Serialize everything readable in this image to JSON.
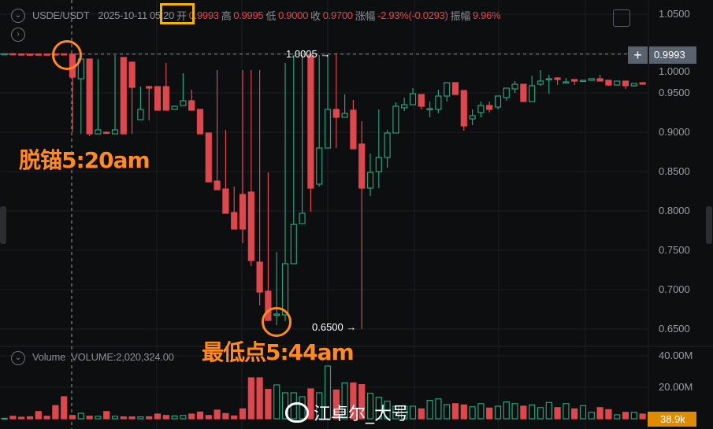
{
  "header": {
    "symbol": "USDE/USDT",
    "date": "2025-10-11",
    "time": "05:20",
    "open_label": "开",
    "open": "0.9993",
    "high_label": "高",
    "high": "0.9995",
    "low_label": "低",
    "low": "0.9000",
    "close_label": "收",
    "close": "0.9700",
    "change_label": "涨幅",
    "change": "-2.93%(-0.0293)",
    "amplitude_label": "振幅",
    "amplitude": "9.96%"
  },
  "price_axis": [
    "1.0500",
    "1.0000",
    "0.9500",
    "0.9000",
    "0.8500",
    "0.8000",
    "0.7500",
    "0.7000",
    "0.6500"
  ],
  "volume_axis": [
    "40.00M",
    "20.00M"
  ],
  "current_price": "0.9993",
  "high_marker": "1.0005 →",
  "low_marker": "0.6500 →",
  "volume_header": {
    "label": "Volume",
    "value": "VOLUME:2,020,324.00"
  },
  "current_volume": "38.9k",
  "annotations": {
    "depeg": "脱锚5:20am",
    "lowest": "最低点5:44am"
  },
  "watermark": "江卓尔_大号",
  "colors": {
    "up": "#26a17b",
    "down": "#e0474c",
    "highlight": "#f5b400",
    "annotation": "#ff8a1f",
    "background": "#0d0e10"
  },
  "chart_data": {
    "type": "candlestick",
    "ylim": [
      0.65,
      1.05
    ],
    "volume_ylim": [
      0,
      40
    ],
    "volume_unit": "M",
    "grid": true,
    "candles": [
      [
        0.9993,
        1.0,
        0.999,
        0.9998
      ],
      [
        0.9998,
        1.0,
        0.999,
        0.9995
      ],
      [
        0.9995,
        0.9998,
        0.999,
        0.9993
      ],
      [
        0.9993,
        0.9998,
        0.999,
        0.9992
      ],
      [
        0.9994,
        0.9998,
        0.999,
        0.9992
      ],
      [
        0.9994,
        0.9998,
        0.999,
        0.9992
      ],
      [
        0.9995,
        0.9998,
        0.999,
        0.9993
      ],
      [
        0.9996,
        0.9998,
        0.999,
        0.9993
      ],
      [
        0.9993,
        0.9995,
        0.9,
        0.97
      ],
      [
        0.968,
        0.998,
        0.898,
        0.993
      ],
      [
        0.993,
        0.993,
        0.895,
        0.898
      ],
      [
        0.898,
        0.993,
        0.898,
        0.903
      ],
      [
        0.9,
        0.901,
        0.898,
        0.899
      ],
      [
        0.898,
        0.998,
        0.898,
        0.903
      ],
      [
        0.995,
        0.995,
        0.898,
        0.898
      ],
      [
        0.989,
        0.99,
        0.898,
        0.957
      ],
      [
        0.916,
        0.958,
        0.916,
        0.929
      ],
      [
        0.958,
        0.959,
        0.915,
        0.956
      ],
      [
        0.958,
        0.958,
        0.928,
        0.928
      ],
      [
        0.958,
        0.988,
        0.928,
        0.928
      ],
      [
        0.929,
        0.934,
        0.929,
        0.933
      ],
      [
        0.934,
        0.975,
        0.934,
        0.94
      ],
      [
        0.94,
        0.954,
        0.928,
        0.928
      ],
      [
        0.929,
        0.929,
        0.898,
        0.898
      ],
      [
        0.899,
        0.899,
        0.837,
        0.837
      ],
      [
        0.838,
        0.979,
        0.827,
        0.827
      ],
      [
        0.828,
        0.903,
        0.797,
        0.797
      ],
      [
        0.798,
        0.831,
        0.777,
        0.777
      ],
      [
        0.821,
        0.979,
        0.759,
        0.777
      ],
      [
        0.824,
        0.979,
        0.73,
        0.737
      ],
      [
        0.735,
        0.979,
        0.68,
        0.697
      ],
      [
        0.698,
        0.849,
        0.66,
        0.661
      ],
      [
        0.668,
        0.748,
        0.655,
        0.669
      ],
      [
        0.668,
        0.988,
        0.66,
        0.733
      ],
      [
        0.733,
        0.998,
        0.733,
        0.783
      ],
      [
        0.784,
        0.998,
        0.784,
        0.797
      ],
      [
        0.998,
        0.998,
        0.799,
        0.829
      ],
      [
        0.834,
        0.998,
        0.831,
        0.88
      ],
      [
        0.88,
        0.998,
        0.88,
        0.929
      ],
      [
        0.929,
        1.0005,
        0.88,
        0.919
      ],
      [
        0.919,
        0.948,
        0.919,
        0.924
      ],
      [
        0.928,
        0.941,
        0.879,
        0.879
      ],
      [
        0.885,
        0.914,
        0.65,
        0.829
      ],
      [
        0.829,
        0.873,
        0.819,
        0.849
      ],
      [
        0.85,
        0.929,
        0.829,
        0.868
      ],
      [
        0.868,
        0.903,
        0.855,
        0.899
      ],
      [
        0.899,
        0.938,
        0.899,
        0.933
      ],
      [
        0.931,
        0.944,
        0.927,
        0.935
      ],
      [
        0.935,
        0.956,
        0.935,
        0.949
      ],
      [
        0.948,
        0.948,
        0.929,
        0.933
      ],
      [
        0.929,
        0.939,
        0.919,
        0.93
      ],
      [
        0.929,
        0.954,
        0.924,
        0.946
      ],
      [
        0.946,
        0.963,
        0.939,
        0.963
      ],
      [
        0.963,
        0.963,
        0.948,
        0.948
      ],
      [
        0.953,
        0.953,
        0.902,
        0.908
      ],
      [
        0.917,
        0.929,
        0.909,
        0.921
      ],
      [
        0.925,
        0.939,
        0.919,
        0.934
      ],
      [
        0.934,
        0.939,
        0.925,
        0.929
      ],
      [
        0.932,
        0.946,
        0.929,
        0.946
      ],
      [
        0.944,
        0.956,
        0.94,
        0.956
      ],
      [
        0.955,
        0.965,
        0.95,
        0.961
      ],
      [
        0.961,
        0.961,
        0.939,
        0.939
      ],
      [
        0.939,
        0.972,
        0.939,
        0.959
      ],
      [
        0.961,
        0.979,
        0.959,
        0.965
      ],
      [
        0.967,
        0.973,
        0.949,
        0.968
      ],
      [
        0.969,
        0.97,
        0.96,
        0.967
      ],
      [
        0.963,
        0.969,
        0.963,
        0.964
      ],
      [
        0.967,
        0.967,
        0.96,
        0.965
      ],
      [
        0.965,
        0.966,
        0.965,
        0.966
      ],
      [
        0.966,
        0.968,
        0.966,
        0.968
      ],
      [
        0.968,
        0.973,
        0.965,
        0.965
      ],
      [
        0.966,
        0.966,
        0.959,
        0.96
      ],
      [
        0.96,
        0.965,
        0.96,
        0.965
      ],
      [
        0.965,
        0.965,
        0.955,
        0.959
      ],
      [
        0.959,
        0.962,
        0.958,
        0.962
      ],
      [
        0.963,
        0.963,
        0.961,
        0.961
      ]
    ],
    "volumes": [
      0.3,
      1.6,
      1.0,
      1.3,
      4.6,
      1.6,
      8.4,
      14,
      2.1,
      3.5,
      1.6,
      1.6,
      4.6,
      1.6,
      1.2,
      1.2,
      1.2,
      1.3,
      3,
      2.1,
      1.8,
      2.1,
      3,
      4.3,
      2.1,
      5.5,
      3.3,
      1.8,
      6.3,
      26,
      26,
      18.7,
      21.5,
      16.5,
      16.5,
      14,
      19,
      16.5,
      33.5,
      18.3,
      22.8,
      22.8,
      21.7,
      16.2,
      13.7,
      11.2,
      8,
      8,
      8,
      6.3,
      11.7,
      12.6,
      9,
      9.6,
      8.8,
      7.6,
      9.6,
      6.8,
      8,
      10.7,
      9.6,
      8,
      8.8,
      7.1,
      10.4,
      7.1,
      9.6,
      6.3,
      8.3,
      4.1,
      7.1,
      5.8,
      2.5,
      4.1,
      4.1,
      3
    ]
  }
}
